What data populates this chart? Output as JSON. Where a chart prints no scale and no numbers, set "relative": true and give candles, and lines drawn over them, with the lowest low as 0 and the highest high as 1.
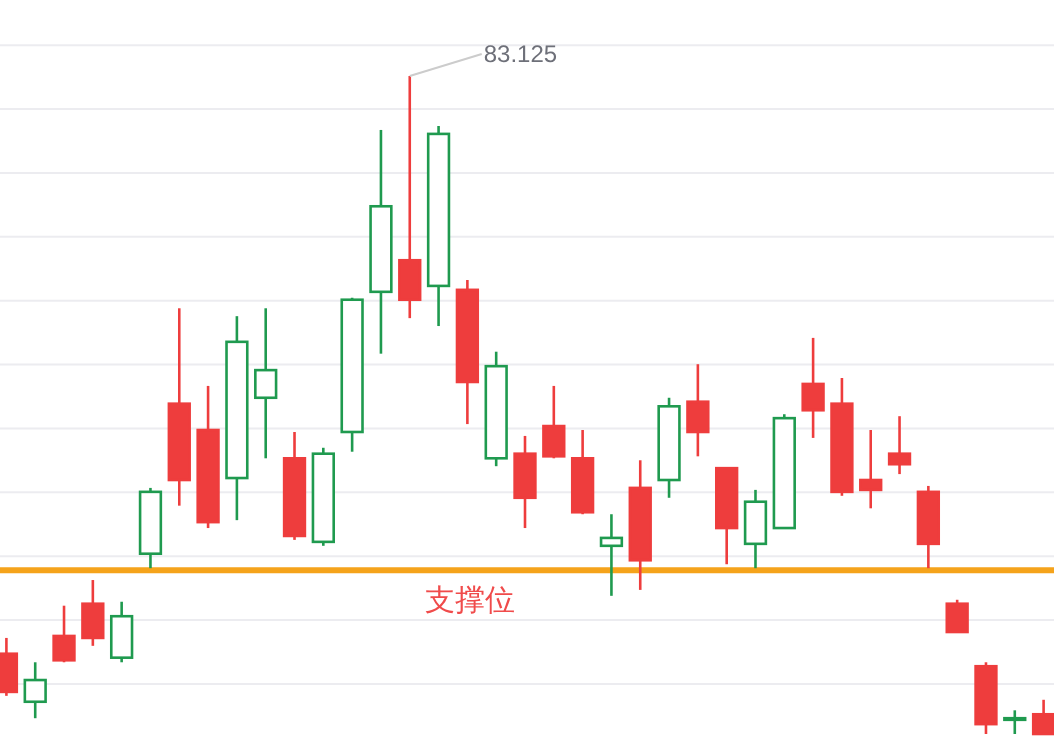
{
  "chart_data": {
    "type": "candlestick",
    "relative": true,
    "grid": "y",
    "categories": [
      null,
      null,
      null,
      null,
      null,
      null,
      null,
      null,
      null,
      null,
      null,
      null,
      null,
      null,
      null,
      null,
      null,
      null,
      null,
      null,
      null,
      null,
      null,
      null,
      null,
      null,
      null,
      null,
      null,
      null,
      null,
      null,
      null,
      null,
      null,
      null,
      null
    ],
    "ohlc": [
      [
        0.122,
        0.146,
        0.058,
        0.064
      ],
      [
        0.049,
        0.109,
        0.024,
        0.082
      ],
      [
        0.149,
        0.195,
        0.109,
        0.112
      ],
      [
        0.198,
        0.234,
        0.134,
        0.146
      ],
      [
        0.116,
        0.201,
        0.109,
        0.179
      ],
      [
        0.274,
        0.374,
        0.252,
        0.368
      ],
      [
        0.502,
        0.647,
        0.347,
        0.386
      ],
      [
        0.462,
        0.529,
        0.313,
        0.322
      ],
      [
        0.389,
        0.635,
        0.325,
        0.596
      ],
      [
        0.511,
        0.647,
        0.419,
        0.553
      ],
      [
        0.419,
        0.459,
        0.295,
        0.301
      ],
      [
        0.292,
        0.435,
        0.286,
        0.426
      ],
      [
        0.459,
        0.663,
        0.429,
        0.66
      ],
      [
        0.672,
        0.918,
        0.578,
        0.802
      ],
      [
        0.72,
        1,
        0.632,
        0.66
      ],
      [
        0.681,
        0.924,
        0.62,
        0.912
      ],
      [
        0.675,
        0.69,
        0.471,
        0.535
      ],
      [
        0.419,
        0.581,
        0.407,
        0.559
      ],
      [
        0.426,
        0.453,
        0.313,
        0.359
      ],
      [
        0.468,
        0.529,
        0.419,
        0.422
      ],
      [
        0.419,
        0.462,
        0.334,
        0.337
      ],
      [
        0.286,
        0.334,
        0.21,
        0.298
      ],
      [
        0.374,
        0.416,
        0.219,
        0.264
      ],
      [
        0.386,
        0.511,
        0.359,
        0.498
      ],
      [
        0.505,
        0.562,
        0.422,
        0.459
      ],
      [
        0.404,
        0.404,
        0.258,
        0.313
      ],
      [
        0.289,
        0.371,
        0.252,
        0.353
      ],
      [
        0.313,
        0.486,
        0.313,
        0.48
      ],
      [
        0.532,
        0.602,
        0.45,
        0.492
      ],
      [
        0.502,
        0.541,
        0.362,
        0.368
      ],
      [
        0.386,
        0.462,
        0.343,
        0.371
      ],
      [
        0.426,
        0.483,
        0.395,
        0.41
      ],
      [
        0.368,
        0.377,
        0.252,
        0.289
      ],
      [
        0.198,
        0.204,
        0.155,
        0.155
      ],
      [
        0.103,
        0.109,
        0,
        0.015
      ],
      [
        0.024,
        0.036,
        0,
        0.024
      ],
      [
        0.03,
        0.052,
        0,
        0
      ]
    ],
    "annotations": [
      "83.125"
    ],
    "ref_lines": [
      {
        "axis": "y",
        "value": 0.249,
        "label": "支撑位",
        "color": "#f5a31b"
      }
    ]
  }
}
